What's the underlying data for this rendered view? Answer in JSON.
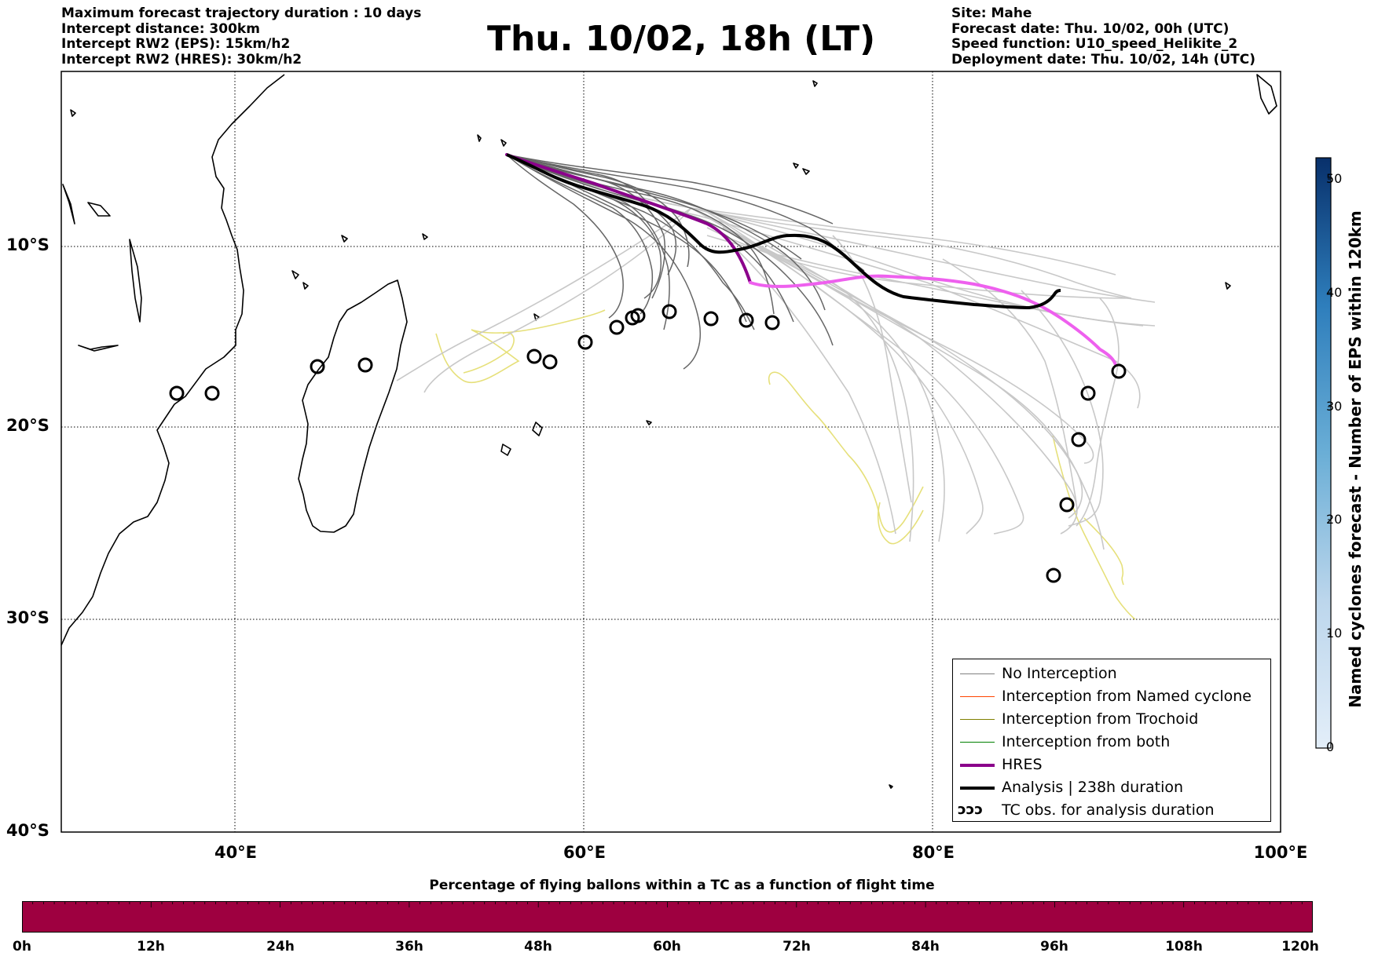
{
  "header_left": [
    "Maximum forecast trajectory duration : 10 days",
    "Intercept distance: 300km",
    "Intercept RW2 (EPS):  15km/h2",
    "Intercept RW2 (HRES): 30km/h2"
  ],
  "title": "Thu. 10/02, 18h (LT)",
  "header_right": [
    "Site: Mahe",
    "Forecast date: Thu. 10/02, 00h (UTC)",
    "Speed function: U10_speed_Helikite_2",
    "Deployment date: Thu. 10/02, 14h (UTC)"
  ],
  "map": {
    "lat_labels": [
      "10°S",
      "20°S",
      "30°S",
      "40°S"
    ],
    "lon_labels": [
      "40°E",
      "60°E",
      "80°E",
      "100°E"
    ],
    "lon_range": [
      30,
      100
    ],
    "lat_range": [
      -40,
      0
    ]
  },
  "legend": [
    {
      "label": "No Interception",
      "color": "#808080",
      "style": "thin"
    },
    {
      "label": "Interception from Named cyclone",
      "color": "#ff4500",
      "style": "thin"
    },
    {
      "label": "Interception from Trochoid",
      "color": "#808000",
      "style": "thin"
    },
    {
      "label": "Interception from both",
      "color": "#008000",
      "style": "thin"
    },
    {
      "label": "HRES",
      "color": "#8b008b",
      "style": "thick"
    },
    {
      "label": "Analysis | 238h duration",
      "color": "#000000",
      "style": "thick"
    },
    {
      "label": "TC obs. for analysis duration",
      "symbol": "ↄↄↄ",
      "style": "symbol"
    }
  ],
  "colorbar": {
    "label": "Named cyclones forecast - Number of EPS within 120km",
    "ticks": [
      "50",
      "40",
      "30",
      "20",
      "10",
      "0"
    ],
    "range": [
      0,
      52
    ]
  },
  "flight_bar": {
    "title": "Percentage of flying ballons within a TC as a function of flight time",
    "ticks": [
      "0h",
      "12h",
      "24h",
      "36h",
      "48h",
      "60h",
      "72h",
      "84h",
      "96h",
      "108h",
      "120h"
    ],
    "color": "#9e0040"
  }
}
